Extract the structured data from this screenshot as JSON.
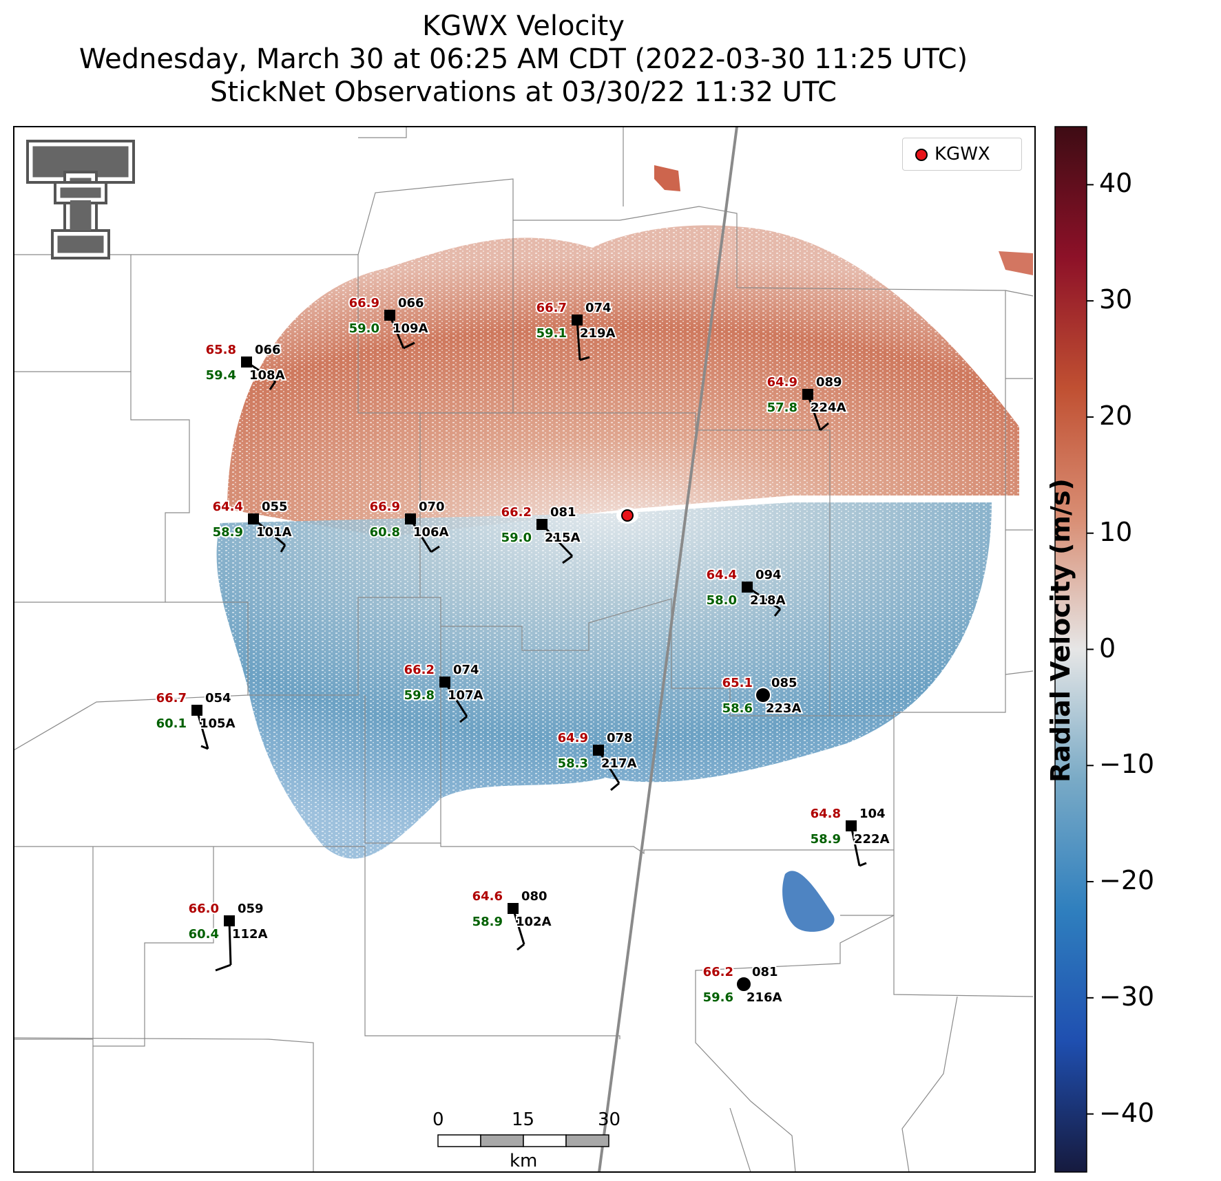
{
  "title": {
    "line1": "KGWX Velocity",
    "line2": "Wednesday, March 30 at 06:25 AM CDT (2022-03-30 11:25 UTC)",
    "line3": "StickNet Observations at 03/30/22 11:32 UTC"
  },
  "legend": {
    "label": "KGWX",
    "marker_color": "#e8141a"
  },
  "radar_site": {
    "id": "KGWX"
  },
  "colorbar": {
    "label": "Radial Velocity (m/s)",
    "range": [
      -45,
      45
    ],
    "ticks": [
      "40",
      "30",
      "20",
      "10",
      "0",
      "−10",
      "−20",
      "−30",
      "−40"
    ],
    "tick_values": [
      40,
      30,
      20,
      10,
      0,
      -10,
      -20,
      -30,
      -40
    ],
    "colors": [
      "#161a3e",
      "#1f4fb0",
      "#2f7fbe",
      "#79aac6",
      "#e6e6e6",
      "#d98e74",
      "#c05032",
      "#8d1128",
      "#3e0c14"
    ]
  },
  "scale_bar": {
    "ticks": [
      "0",
      "15",
      "30"
    ],
    "unit": "km"
  },
  "logo": {
    "name": "Texas Tech Double T",
    "icon": "double-t-logo"
  },
  "stations": [
    {
      "id": "109A",
      "temp": "66.9",
      "dew": "59.0",
      "dir": "066",
      "marker": "square"
    },
    {
      "id": "219A",
      "temp": "66.7",
      "dew": "59.1",
      "dir": "074",
      "marker": "square"
    },
    {
      "id": "108A",
      "temp": "65.8",
      "dew": "59.4",
      "dir": "066",
      "marker": "square"
    },
    {
      "id": "224A",
      "temp": "64.9",
      "dew": "57.8",
      "dir": "089",
      "marker": "square"
    },
    {
      "id": "101A",
      "temp": "64.4",
      "dew": "58.9",
      "dir": "055",
      "marker": "square"
    },
    {
      "id": "106A",
      "temp": "66.9",
      "dew": "60.8",
      "dir": "070",
      "marker": "square"
    },
    {
      "id": "215A",
      "temp": "66.2",
      "dew": "59.0",
      "dir": "081",
      "marker": "square"
    },
    {
      "id": "218A",
      "temp": "64.4",
      "dew": "58.0",
      "dir": "094",
      "marker": "square"
    },
    {
      "id": "107A",
      "temp": "66.2",
      "dew": "59.8",
      "dir": "074",
      "marker": "square"
    },
    {
      "id": "223A",
      "temp": "65.1",
      "dew": "58.6",
      "dir": "085",
      "marker": "circle"
    },
    {
      "id": "105A",
      "temp": "66.7",
      "dew": "60.1",
      "dir": "054",
      "marker": "square"
    },
    {
      "id": "217A",
      "temp": "64.9",
      "dew": "58.3",
      "dir": "078",
      "marker": "square"
    },
    {
      "id": "222A",
      "temp": "64.8",
      "dew": "58.9",
      "dir": "104",
      "marker": "square"
    },
    {
      "id": "112A",
      "temp": "66.0",
      "dew": "60.4",
      "dir": "059",
      "marker": "square"
    },
    {
      "id": "102A",
      "temp": "64.6",
      "dew": "58.9",
      "dir": "080",
      "marker": "square"
    },
    {
      "id": "216A",
      "temp": "66.2",
      "dew": "59.6",
      "dir": "081",
      "marker": "circle"
    }
  ]
}
